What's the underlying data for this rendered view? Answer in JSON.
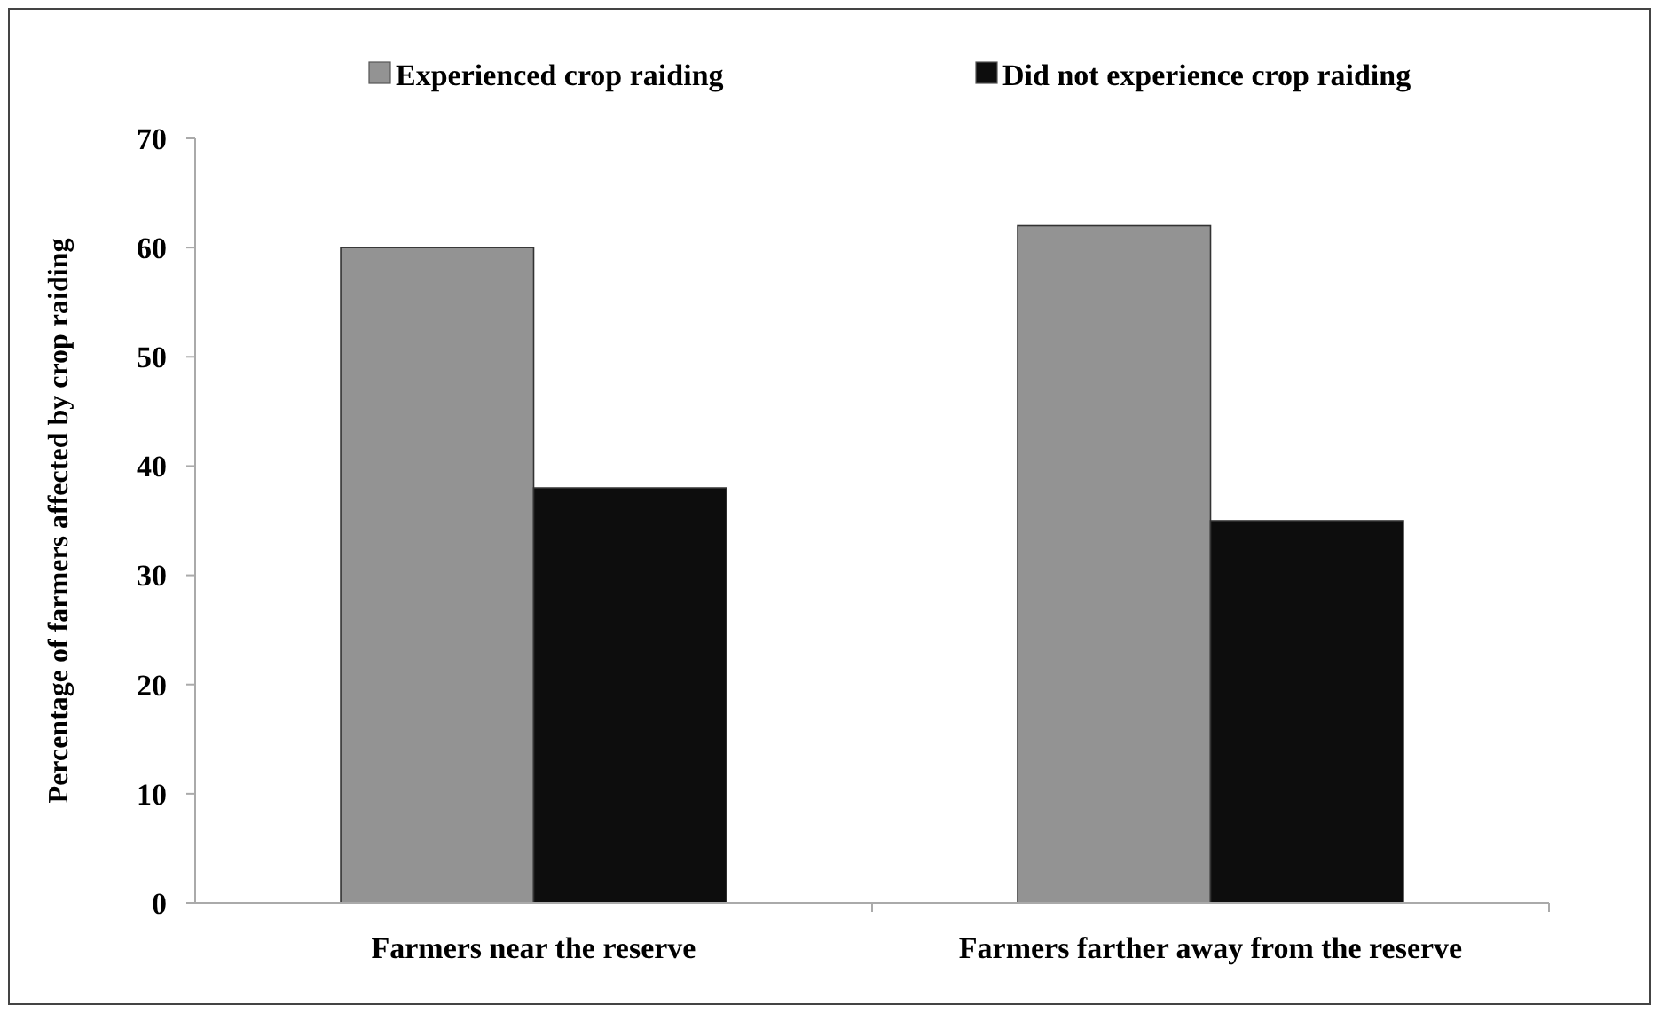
{
  "chart_data": {
    "type": "bar",
    "ylabel": "Percentage of farmers affected by crop raiding",
    "categories": [
      "Farmers near the reserve",
      "Farmers farther away from the reserve"
    ],
    "series": [
      {
        "name": "Experienced crop raiding",
        "color": "#939393",
        "values": [
          60,
          62
        ]
      },
      {
        "name": "Did not experience crop raiding",
        "color": "#0d0d0d",
        "values": [
          38,
          35
        ]
      }
    ],
    "ylim": [
      0,
      70
    ],
    "yticks": [
      0,
      10,
      20,
      30,
      40,
      50,
      60,
      70
    ],
    "grid": false,
    "legend": "top"
  }
}
